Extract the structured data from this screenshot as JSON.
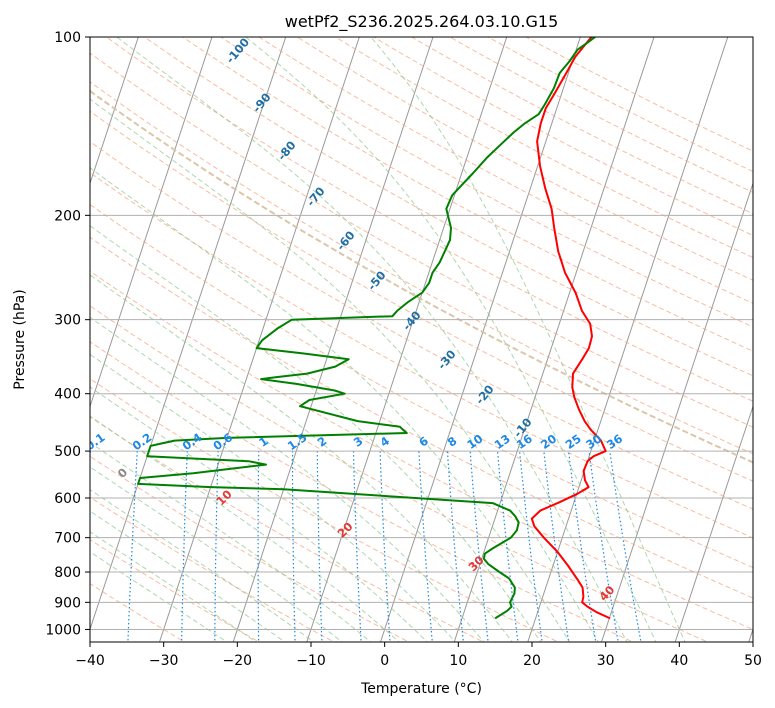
{
  "chart_data": {
    "type": "line",
    "title": "wetPf2_S236.2025.264.03.10.G15",
    "xlabel": "Temperature (°C)",
    "ylabel": "Pressure (hPa)",
    "xlim": [
      -40,
      50
    ],
    "ylim_hPa": [
      1050,
      100
    ],
    "y_scale": "log",
    "x_ticks": [
      "−40",
      "−30",
      "−20",
      "−10",
      "0",
      "10",
      "20",
      "30",
      "40",
      "50"
    ],
    "x_tick_values": [
      -40,
      -30,
      -20,
      -10,
      0,
      10,
      20,
      30,
      40,
      50
    ],
    "y_ticks": [
      "100",
      "200",
      "300",
      "400",
      "500",
      "600",
      "700",
      "800",
      "900",
      "1000"
    ],
    "y_tick_values": [
      100,
      200,
      300,
      400,
      500,
      600,
      700,
      800,
      900,
      1000
    ],
    "grid": true,
    "colors": {
      "temperature": "#ff0000",
      "dewpoint": "#008000",
      "isotherm": "#999999",
      "dry_adiabat": "#f4a582",
      "moist_adiabat": "#8cc68c",
      "mixing_ratio": "#1e88e5",
      "dry_adiabat_label": "#e53935",
      "moist_adiabat_label": "#1f6fa5",
      "tan_curve": "#d8c0a0"
    },
    "series": [
      {
        "color": "#ff0000",
        "points": [
          [
            30.1,
            958
          ],
          [
            28,
            935
          ],
          [
            26.5,
            915
          ],
          [
            25.6,
            900
          ],
          [
            25.5,
            880
          ],
          [
            25,
            850
          ],
          [
            24,
            825
          ],
          [
            22,
            780
          ],
          [
            20,
            740
          ],
          [
            17.5,
            700
          ],
          [
            15.7,
            670
          ],
          [
            15,
            650
          ],
          [
            15.8,
            630
          ],
          [
            18,
            610
          ],
          [
            20.1,
            590
          ],
          [
            21.3,
            575
          ],
          [
            20.5,
            560
          ],
          [
            19.9,
            540
          ],
          [
            20,
            520
          ],
          [
            20.6,
            510
          ],
          [
            22,
            500
          ],
          [
            20.9,
            480
          ],
          [
            19,
            460
          ],
          [
            17.8,
            445
          ],
          [
            16.5,
            425
          ],
          [
            15.3,
            405
          ],
          [
            14.6,
            390
          ],
          [
            14.1,
            370
          ],
          [
            14.7,
            350
          ],
          [
            15.1,
            335
          ],
          [
            15,
            320
          ],
          [
            14.2,
            305
          ],
          [
            12.5,
            290
          ],
          [
            10.8,
            270
          ],
          [
            8.5,
            250
          ],
          [
            6.6,
            230
          ],
          [
            5,
            210
          ],
          [
            3.8,
            195
          ],
          [
            2,
            180
          ],
          [
            0.3,
            165
          ],
          [
            -1.2,
            150
          ],
          [
            -1.5,
            140
          ],
          [
            -1.5,
            132
          ],
          [
            -1,
            125
          ],
          [
            -0.3,
            115
          ],
          [
            0.2,
            108
          ],
          [
            1,
            103
          ],
          [
            1.5,
            100
          ]
        ]
      },
      {
        "color": "#008000",
        "points": [
          [
            14.5,
            958
          ],
          [
            15.8,
            930
          ],
          [
            16.2,
            915
          ],
          [
            15.8,
            900
          ],
          [
            16,
            870
          ],
          [
            15.8,
            850
          ],
          [
            14.6,
            820
          ],
          [
            13,
            800
          ],
          [
            11.1,
            775
          ],
          [
            10.3,
            760
          ],
          [
            10.2,
            745
          ],
          [
            11,
            730
          ],
          [
            12,
            715
          ],
          [
            13,
            700
          ],
          [
            13.5,
            680
          ],
          [
            13.4,
            660
          ],
          [
            12.7,
            645
          ],
          [
            11.7,
            630
          ],
          [
            9,
            612
          ],
          [
            -20,
            580
          ],
          [
            -30,
            575
          ],
          [
            -40,
            568
          ],
          [
            -40,
            555
          ],
          [
            -33,
            545
          ],
          [
            -23.5,
            527
          ],
          [
            -26,
            520
          ],
          [
            -40,
            510
          ],
          [
            -40,
            490
          ],
          [
            -37,
            480
          ],
          [
            -30,
            475
          ],
          [
            -5.8,
            466
          ],
          [
            -6.5,
            460
          ],
          [
            -7,
            455
          ],
          [
            -13,
            445
          ],
          [
            -21.5,
            420
          ],
          [
            -20.5,
            410
          ],
          [
            -16,
            400
          ],
          [
            -17.5,
            395
          ],
          [
            -23,
            385
          ],
          [
            -28,
            378
          ],
          [
            -26,
            375
          ],
          [
            -22,
            370
          ],
          [
            -18.5,
            360
          ],
          [
            -17,
            350
          ],
          [
            -23.5,
            342
          ],
          [
            -30,
            335
          ],
          [
            -29.6,
            325
          ],
          [
            -28,
            310
          ],
          [
            -26.5,
            300
          ],
          [
            -13,
            296
          ],
          [
            -12.6,
            290
          ],
          [
            -11.5,
            280
          ],
          [
            -10,
            270
          ],
          [
            -9.5,
            260
          ],
          [
            -9.5,
            250
          ],
          [
            -9,
            240
          ],
          [
            -8.8,
            230
          ],
          [
            -8.6,
            220
          ],
          [
            -9,
            210
          ],
          [
            -10.5,
            195
          ],
          [
            -10.3,
            185
          ],
          [
            -9.5,
            178
          ],
          [
            -8.5,
            170
          ],
          [
            -7.3,
            160
          ],
          [
            -6,
            152
          ],
          [
            -4.8,
            145
          ],
          [
            -3.7,
            140
          ],
          [
            -2.2,
            135
          ],
          [
            -1.8,
            130
          ],
          [
            -1.3,
            122
          ],
          [
            -1.2,
            115
          ],
          [
            -0.4,
            110
          ],
          [
            0.2,
            105
          ],
          [
            1.3,
            102
          ],
          [
            2,
            100
          ]
        ]
      }
    ],
    "dry_adiabat_labels": [
      "0",
      "10",
      "20",
      "30",
      "40"
    ],
    "moist_adiabat_labels": [
      "-100",
      "-90",
      "-80",
      "-70",
      "-60",
      "-50",
      "-40",
      "-30",
      "-20",
      "-10"
    ],
    "mixing_ratio_labels": [
      "0.1",
      "0.2",
      "0.4",
      "0.6",
      "1",
      "1.5",
      "2",
      "3",
      "4",
      "6",
      "8",
      "10",
      "13",
      "16",
      "20",
      "25",
      "30",
      "36"
    ]
  }
}
